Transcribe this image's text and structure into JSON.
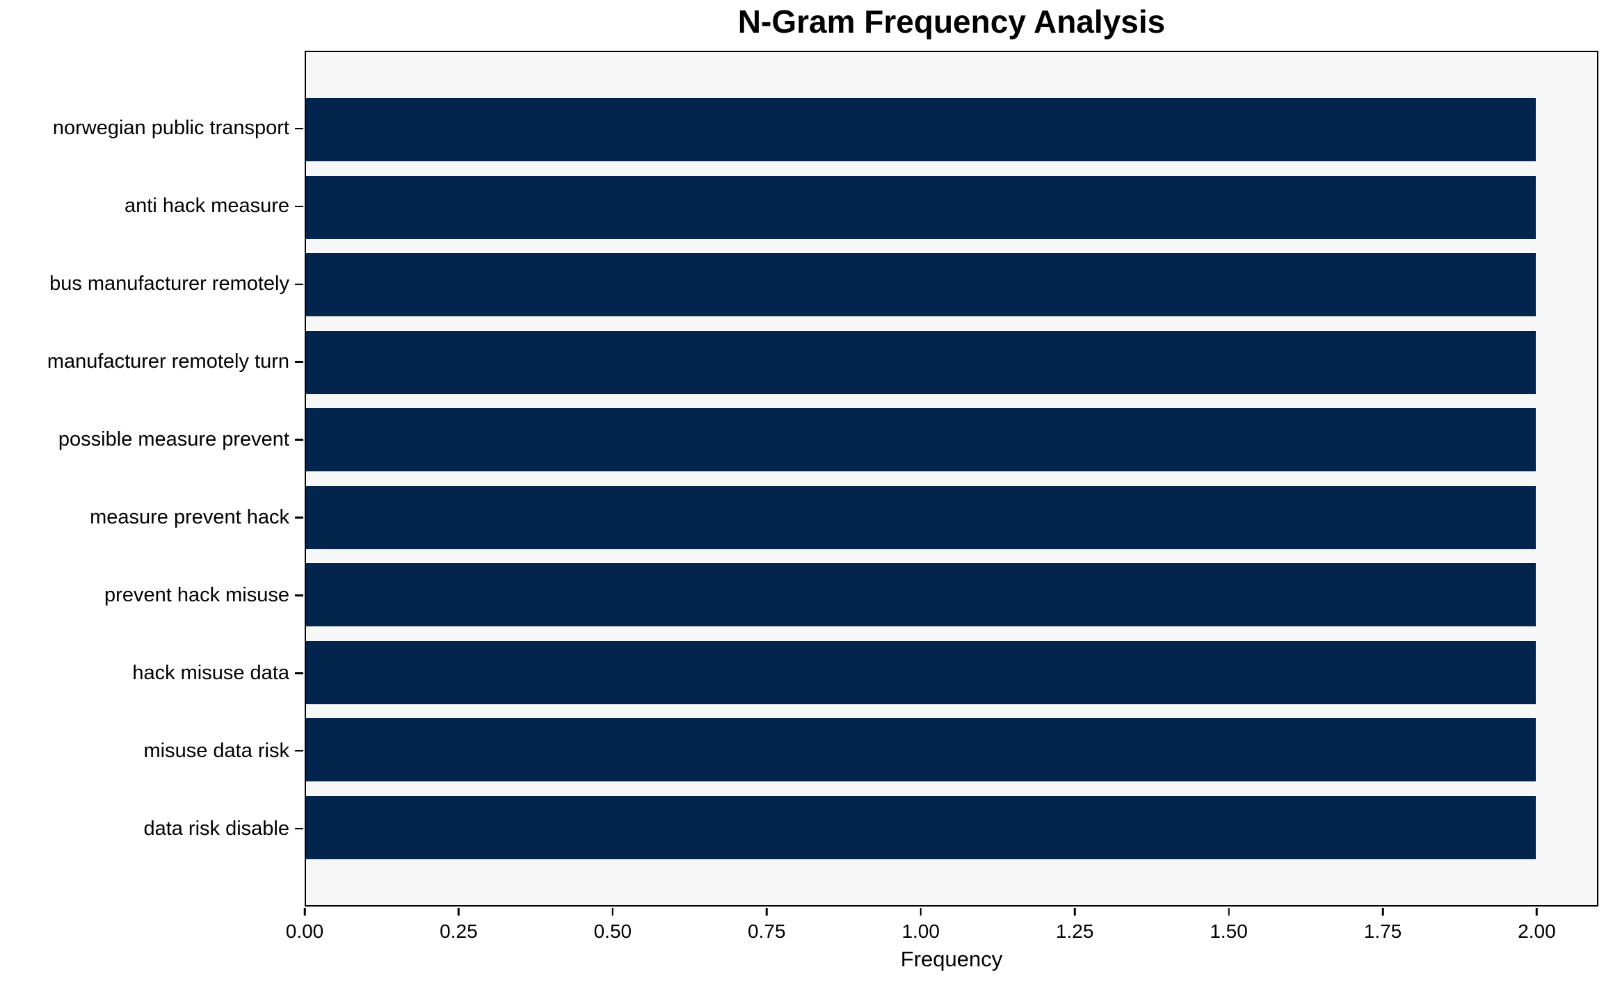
{
  "chart_data": {
    "type": "bar",
    "orientation": "horizontal",
    "title": "N-Gram Frequency Analysis",
    "xlabel": "Frequency",
    "ylabel": "",
    "categories": [
      "norwegian public transport",
      "anti hack measure",
      "bus manufacturer remotely",
      "manufacturer remotely turn",
      "possible measure prevent",
      "measure prevent hack",
      "prevent hack misuse",
      "hack misuse data",
      "misuse data risk",
      "data risk disable"
    ],
    "values": [
      2,
      2,
      2,
      2,
      2,
      2,
      2,
      2,
      2,
      2
    ],
    "xlim": [
      0,
      2.1
    ],
    "xticks": [
      0.0,
      0.25,
      0.5,
      0.75,
      1.0,
      1.25,
      1.5,
      1.75,
      2.0
    ],
    "xtick_labels": [
      "0.00",
      "0.25",
      "0.50",
      "0.75",
      "1.00",
      "1.25",
      "1.50",
      "1.75",
      "2.00"
    ],
    "grid": false,
    "legend": null,
    "colors": {
      "bar": "#02244d",
      "plot_background": "#f7f7f7",
      "figure_background": "#ffffff",
      "spine": "#000000",
      "text": "#000000"
    }
  }
}
